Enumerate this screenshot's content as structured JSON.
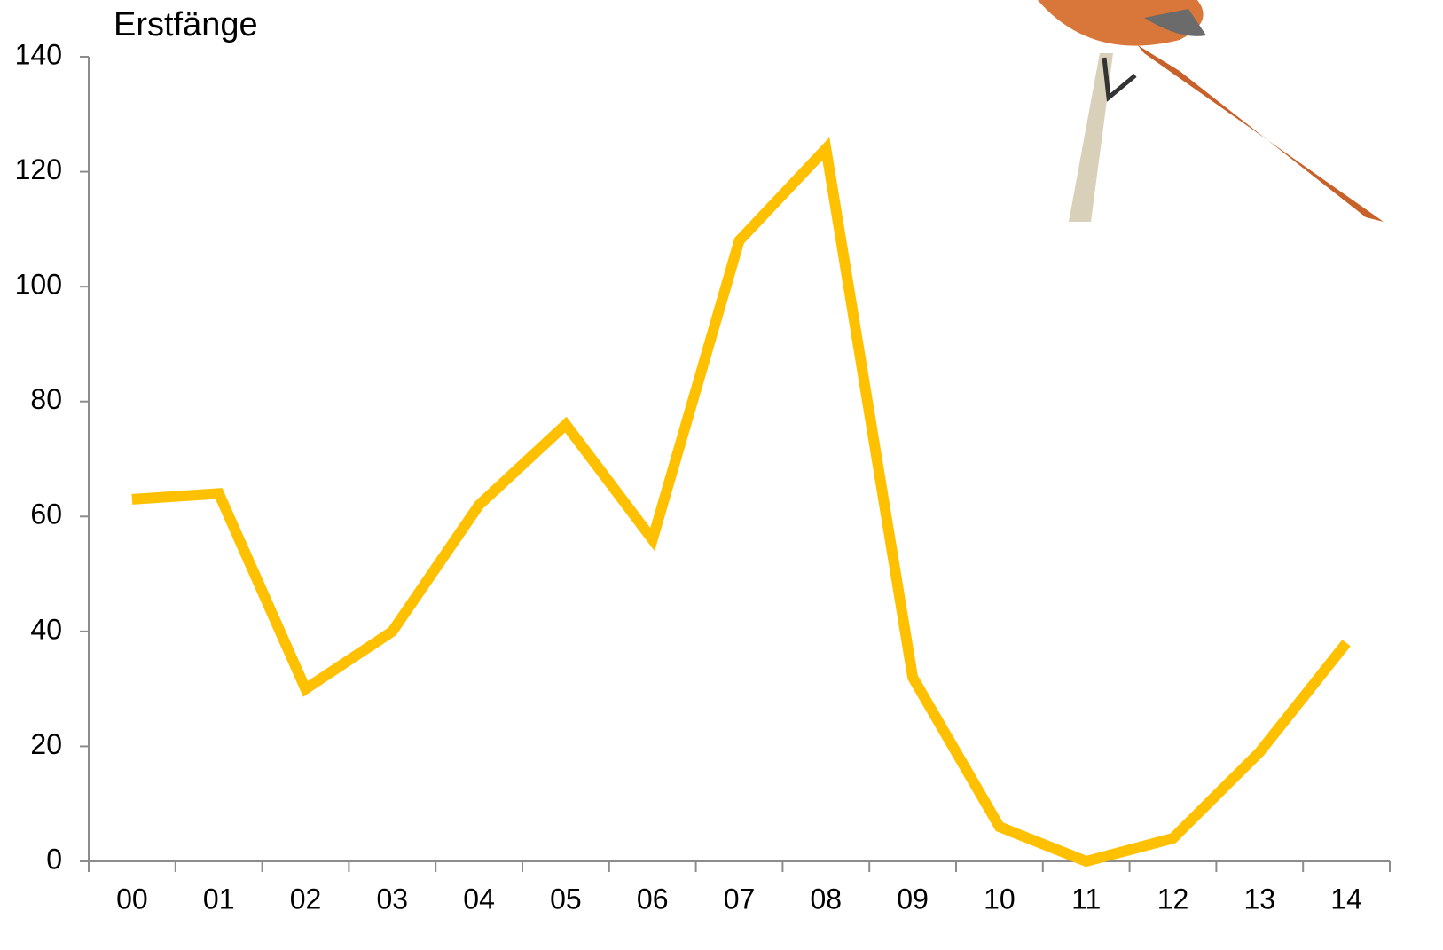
{
  "chart_data": {
    "type": "line",
    "title": "Erstfänge",
    "categories": [
      "00",
      "01",
      "02",
      "03",
      "04",
      "05",
      "06",
      "07",
      "08",
      "09",
      "10",
      "11",
      "12",
      "13",
      "14"
    ],
    "series": [
      {
        "name": "Erstfänge",
        "color": "#FFC000",
        "values": [
          63,
          64,
          30,
          40,
          62,
          76,
          56,
          108,
          124,
          32,
          6,
          0,
          4,
          19,
          38
        ]
      }
    ],
    "ylim": [
      0,
      140
    ],
    "yticks": [
      0,
      20,
      40,
      60,
      80,
      100,
      120,
      140
    ]
  }
}
